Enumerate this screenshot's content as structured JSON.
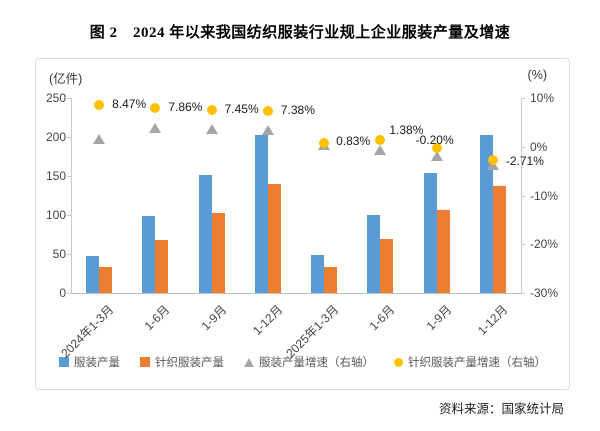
{
  "page": {
    "title": "图 2　2024 年以来我国纺织服装行业规上企业服装产量及增速",
    "source": "资料来源：国家统计局"
  },
  "chart_data": {
    "type": "bar",
    "title": "图 2　2024 年以来我国纺织服装行业规上企业服装产量及增速",
    "categories": [
      "2024年1-3月",
      "1-6月",
      "1-9月",
      "1-12月",
      "2025年1-3月",
      "1-6月",
      "1-9月",
      "1-12月"
    ],
    "left_axis": {
      "unit_label": "(亿件)",
      "min": 0,
      "max": 250,
      "ticks": [
        "250",
        "200",
        "150",
        "100",
        "50",
        "0"
      ]
    },
    "right_axis": {
      "unit_label": "(%)",
      "min": -30,
      "max": 10,
      "ticks": [
        "10%",
        "0%",
        "-10%",
        "-20%",
        "-30%"
      ]
    },
    "grid": false,
    "legend_position": "bottom",
    "series": [
      {
        "name": "服装产量",
        "kind": "bar",
        "marker": "square",
        "axis": "left",
        "color": "#5B9BD5",
        "values": [
          48,
          99,
          151,
          203,
          49,
          100,
          154,
          202
        ]
      },
      {
        "name": "针织服装产量",
        "kind": "bar",
        "marker": "square",
        "axis": "left",
        "color": "#ED7D31",
        "values": [
          33,
          68,
          103,
          140,
          33,
          69,
          106,
          137
        ]
      },
      {
        "name": "服装产量增速（右轴）",
        "kind": "scatter",
        "marker": "triangle",
        "axis": "right",
        "color": "#A5A5A5",
        "values": [
          1.5,
          3.9,
          3.6,
          3.5,
          0.4,
          -0.6,
          -1.9,
          -3.8
        ]
      },
      {
        "name": "针织服装产量增速（右轴）",
        "kind": "scatter",
        "marker": "circle",
        "axis": "right",
        "color": "#FFC000",
        "values": [
          8.47,
          7.86,
          7.45,
          7.38,
          0.83,
          1.38,
          -0.2,
          -2.71
        ],
        "labels": [
          "8.47%",
          "7.86%",
          "7.45%",
          "7.38%",
          "0.83%",
          "1.38%",
          "-0.20%",
          "-2.71%"
        ]
      }
    ]
  }
}
